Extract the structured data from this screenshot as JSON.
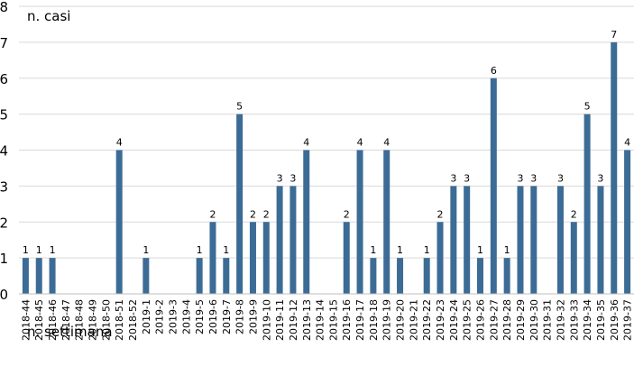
{
  "chart_data": {
    "type": "bar",
    "xlabel": "n. settimana",
    "ylabel": "n. casi",
    "ylim": [
      0,
      8
    ],
    "yticks": [
      0,
      1,
      2,
      3,
      4,
      5,
      6,
      7,
      8
    ],
    "grid": true,
    "bar_color": "#3c6c96",
    "grid_color": "#d9d9d9",
    "categories": [
      "2018-44",
      "2018-45",
      "2018-46",
      "2018-47",
      "2018-48",
      "2018-49",
      "2018-50",
      "2018-51",
      "2018-52",
      "2019-1",
      "2019-2",
      "2019-3",
      "2019-4",
      "2019-5",
      "2019-6",
      "2019-7",
      "2019-8",
      "2019-9",
      "2019-10",
      "2019-11",
      "2019-12",
      "2019-13",
      "2019-14",
      "2019-15",
      "2019-16",
      "2019-17",
      "2019-18",
      "2019-19",
      "2019-20",
      "2019-21",
      "2019-22",
      "2019-23",
      "2019-24",
      "2019-25",
      "2019-26",
      "2019-27",
      "2019-28",
      "2019-29",
      "2019-30",
      "2019-31",
      "2019-32",
      "2019-33",
      "2019-34",
      "2019-35",
      "2019-36",
      "2019-37"
    ],
    "values": [
      1,
      1,
      1,
      0,
      0,
      0,
      0,
      4,
      0,
      1,
      0,
      0,
      0,
      1,
      2,
      1,
      5,
      2,
      2,
      3,
      3,
      4,
      0,
      0,
      2,
      4,
      1,
      4,
      1,
      0,
      1,
      2,
      3,
      3,
      1,
      6,
      1,
      3,
      3,
      0,
      3,
      2,
      5,
      3,
      7,
      4
    ]
  }
}
